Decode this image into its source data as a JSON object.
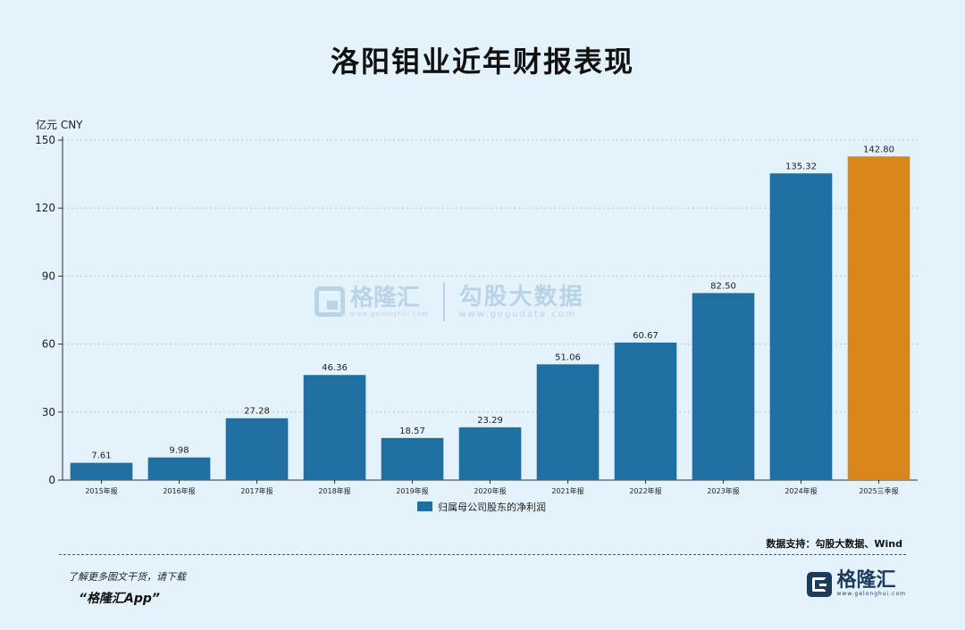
{
  "title": "洛阳钼业近年财报表现",
  "watermark": {
    "brand1": "格隆汇",
    "url1": "www.gelonghui.com",
    "brand2": "勾股大数据",
    "url2": "www.gogudata.com"
  },
  "source": "数据支持：勾股大数据、Wind",
  "promo": {
    "line1": "了解更多图文干货，请下载",
    "line2": "“格隆汇App”"
  },
  "brand": {
    "name": "格隆汇",
    "url": "www.gelonghui.com"
  },
  "colors": {
    "bar": "#1f6fa3",
    "highlight": "#d9861c",
    "grid": "#b9c4cc"
  },
  "chart_data": {
    "type": "bar",
    "unit_label": "亿元  CNY",
    "categories": [
      "2015年报",
      "2016年报",
      "2017年报",
      "2018年报",
      "2019年报",
      "2020年报",
      "2021年报",
      "2022年报",
      "2023年报",
      "2024年报",
      "2025三季报"
    ],
    "series": [
      {
        "name": "归属母公司股东的净利润",
        "values": [
          7.61,
          9.98,
          27.28,
          46.36,
          18.57,
          23.29,
          51.06,
          60.67,
          82.5,
          135.32,
          142.8
        ],
        "labels": [
          "7.61",
          "9.98",
          "27.28",
          "46.36",
          "18.57",
          "23.29",
          "51.06",
          "60.67",
          "82.50",
          "135.32",
          "142.80"
        ]
      }
    ],
    "highlight_index": 10,
    "ylim": [
      0,
      150
    ],
    "yticks": [
      0,
      30,
      60,
      90,
      120,
      150
    ],
    "grid": true,
    "legend_position": "bottom"
  }
}
